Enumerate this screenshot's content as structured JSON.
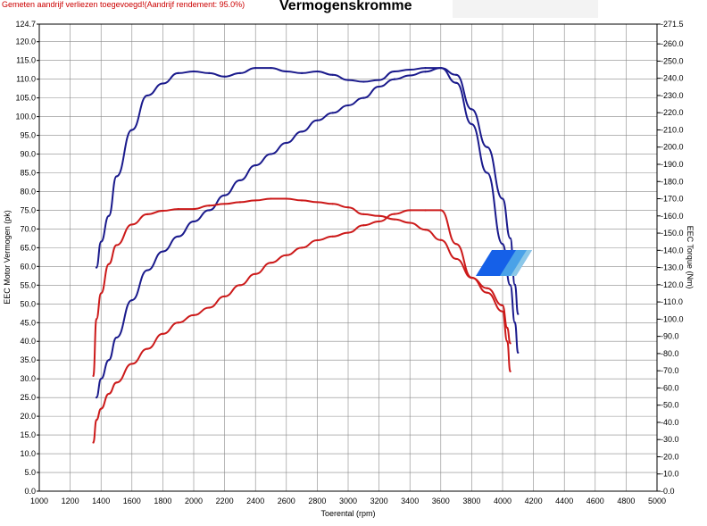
{
  "header": {
    "note": "Gemeten aandrijf verliezen toegevoegd!(Aandrijf rendement: 95.0%)",
    "title": "Vermogenskromme"
  },
  "chart_data": {
    "type": "line",
    "title": "Vermogenskromme",
    "xlabel": "Toerental (rpm)",
    "ylabel_left": "EEC Motor Vermogen (pk)",
    "ylabel_right": "EEC Torque (Nm)",
    "xlim": [
      1000,
      5000
    ],
    "ylim_left": [
      0,
      124.7
    ],
    "ylim_right": [
      0,
      271.5
    ],
    "grid": true,
    "x_ticks": [
      "1000",
      "1200",
      "1400",
      "1600",
      "1800",
      "2000",
      "2200",
      "2400",
      "2600",
      "2800",
      "3000",
      "3200",
      "3400",
      "3600",
      "3800",
      "4000",
      "4200",
      "4400",
      "4600",
      "4800",
      "5000"
    ],
    "y_left_ticks": [
      "124.7",
      "120.0",
      "115.0",
      "110.0",
      "105.0",
      "100.0",
      "95.0",
      "90.0",
      "85.0",
      "80.0",
      "75.0",
      "70.0",
      "65.0",
      "60.0",
      "55.0",
      "50.0",
      "45.0",
      "40.0",
      "35.0",
      "30.0",
      "25.0",
      "20.0",
      "15.0",
      "10.0",
      "5.0",
      "0.0"
    ],
    "y_right_ticks": [
      "271.5",
      "260.0",
      "250.0",
      "240.0",
      "230.0",
      "220.0",
      "210.0",
      "200.0",
      "190.0",
      "180.0",
      "170.0",
      "160.0",
      "150.0",
      "140.0",
      "130.0",
      "120.0",
      "110.0",
      "100.0",
      "90.0",
      "80.0",
      "70.0",
      "60.0",
      "50.0",
      "40.0",
      "30.0",
      "20.0",
      "10.0",
      "0.0"
    ],
    "series": [
      {
        "color": "#1a1a8c",
        "axis": "right",
        "x": [
          1370,
          1400,
          1450,
          1500,
          1600,
          1700,
          1800,
          1900,
          2000,
          2100,
          2200,
          2300,
          2400,
          2500,
          2600,
          2700,
          2800,
          2900,
          3000,
          3100,
          3200,
          3300,
          3400,
          3500,
          3600,
          3700,
          3800,
          3900,
          4000,
          4050,
          4080,
          4100
        ],
        "values": [
          130,
          145,
          160,
          183,
          210,
          230,
          237,
          243,
          244,
          243,
          241,
          243,
          246,
          246,
          244,
          243,
          244,
          242,
          239,
          238,
          239,
          244,
          245,
          246,
          246,
          242,
          222,
          200,
          170,
          147,
          120,
          103
        ]
      },
      {
        "color": "#1a1a8c",
        "axis": "left",
        "x": [
          1370,
          1400,
          1450,
          1500,
          1600,
          1700,
          1800,
          1900,
          2000,
          2100,
          2200,
          2300,
          2400,
          2500,
          2600,
          2700,
          2800,
          2900,
          3000,
          3100,
          3200,
          3300,
          3400,
          3500,
          3600,
          3700,
          3800,
          3900,
          4000,
          4050,
          4080,
          4100
        ],
        "values": [
          25,
          30,
          35,
          41,
          51,
          59,
          64,
          68,
          72,
          75,
          79,
          83,
          87,
          90,
          93,
          96,
          99,
          101,
          103,
          105,
          108,
          110,
          111,
          112,
          113,
          109,
          98,
          85,
          66,
          55,
          45,
          37
        ]
      },
      {
        "color": "#cc1a1a",
        "axis": "right",
        "x": [
          1350,
          1370,
          1400,
          1450,
          1500,
          1600,
          1700,
          1800,
          1900,
          2000,
          2100,
          2200,
          2300,
          2400,
          2500,
          2600,
          2700,
          2800,
          2900,
          3000,
          3100,
          3200,
          3300,
          3400,
          3500,
          3600,
          3700,
          3800,
          3900,
          4000,
          4030,
          4050
        ],
        "values": [
          67,
          100,
          115,
          132,
          143,
          155,
          161,
          163,
          164,
          164,
          166,
          167,
          168,
          169,
          170,
          170,
          169,
          168,
          167,
          165,
          161,
          160,
          158,
          156,
          152,
          146,
          135,
          124,
          118,
          108,
          95,
          86
        ]
      },
      {
        "color": "#cc1a1a",
        "axis": "left",
        "x": [
          1350,
          1370,
          1400,
          1450,
          1500,
          1600,
          1700,
          1800,
          1900,
          2000,
          2100,
          2200,
          2300,
          2400,
          2500,
          2600,
          2700,
          2800,
          2900,
          3000,
          3100,
          3200,
          3300,
          3400,
          3500,
          3600,
          3700,
          3800,
          3900,
          4000,
          4030,
          4050
        ],
        "values": [
          13,
          19,
          22,
          26,
          29,
          34,
          38,
          42,
          45,
          47,
          49,
          52,
          55,
          58,
          61,
          63,
          65,
          67,
          68,
          69,
          71,
          72,
          74,
          75,
          75,
          75,
          66,
          57,
          53,
          48,
          40,
          32
        ]
      }
    ]
  }
}
